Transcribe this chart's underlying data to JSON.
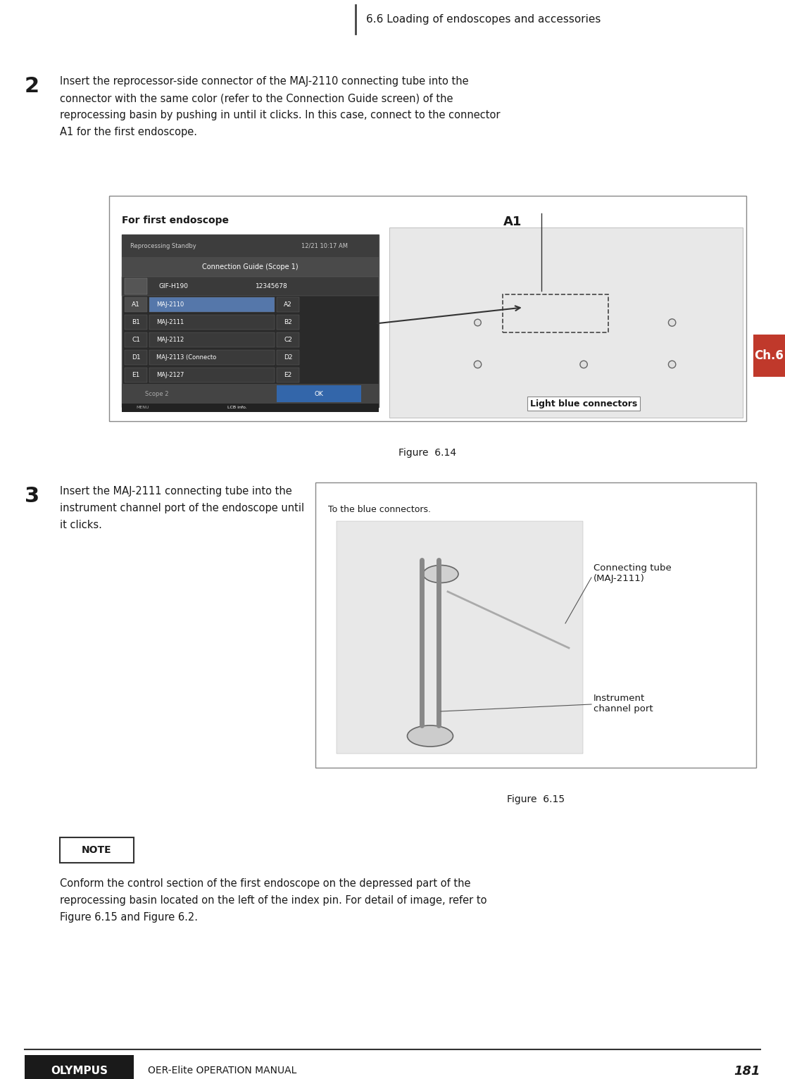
{
  "page_width": 11.15,
  "page_height": 15.32,
  "dpi": 100,
  "bg_color": "#ffffff",
  "header_text": "6.6 Loading of endoscopes and accessories",
  "ch6_label": "Ch.6",
  "ch6_bg": "#c0392b",
  "step2_number": "2",
  "step2_text": "Insert the reprocessor-side connector of the MAJ-2110 connecting tube into the\nconnector with the same color (refer to the Connection Guide screen) of the\nreprocessing basin by pushing in until it clicks. In this case, connect to the connector\nA1 for the first endoscope.",
  "fig614_label": "Figure  6.14",
  "fig614_box_label": "For first endoscope",
  "fig614_a1_label": "A1",
  "fig614_light_blue": "Light blue connectors",
  "step3_number": "3",
  "step3_text": "Insert the MAJ-2111 connecting tube into the\ninstrument channel port of the endoscope until\nit clicks.",
  "fig615_label": "Figure  6.15",
  "fig615_to_blue": "To the blue connectors.",
  "fig615_conn_tube": "Connecting tube\n(MAJ-2111)",
  "fig615_instr_port": "Instrument\nchannel port",
  "note_label": "NOTE",
  "note_text": "Conform the control section of the first endoscope on the depressed part of the\nreprocessing basin located on the left of the index pin. For detail of image, refer to\nFigure 6.15 and Figure 6.2.",
  "footer_brand": "OLYMPUS",
  "footer_manual": "OER-Elite OPERATION MANUAL",
  "footer_page": "181",
  "text_color": "#1a1a1a",
  "header_line_color": "#444444",
  "border_color": "#888888",
  "screen_bg": "#2a2a2a",
  "screen_dark": "#3a3a3a",
  "screen_header": "#3d3d3d",
  "screen_mid": "#444444",
  "highlight_blue": "#5577aa",
  "screen_text": "#cccccc",
  "ok_btn_color": "#3366aa",
  "footer_line_color": "#333333",
  "footer_bg": "#1a1a1a",
  "note_border": "#333333",
  "img_placeholder": "#e8e8e8",
  "img_border": "#aaaaaa"
}
